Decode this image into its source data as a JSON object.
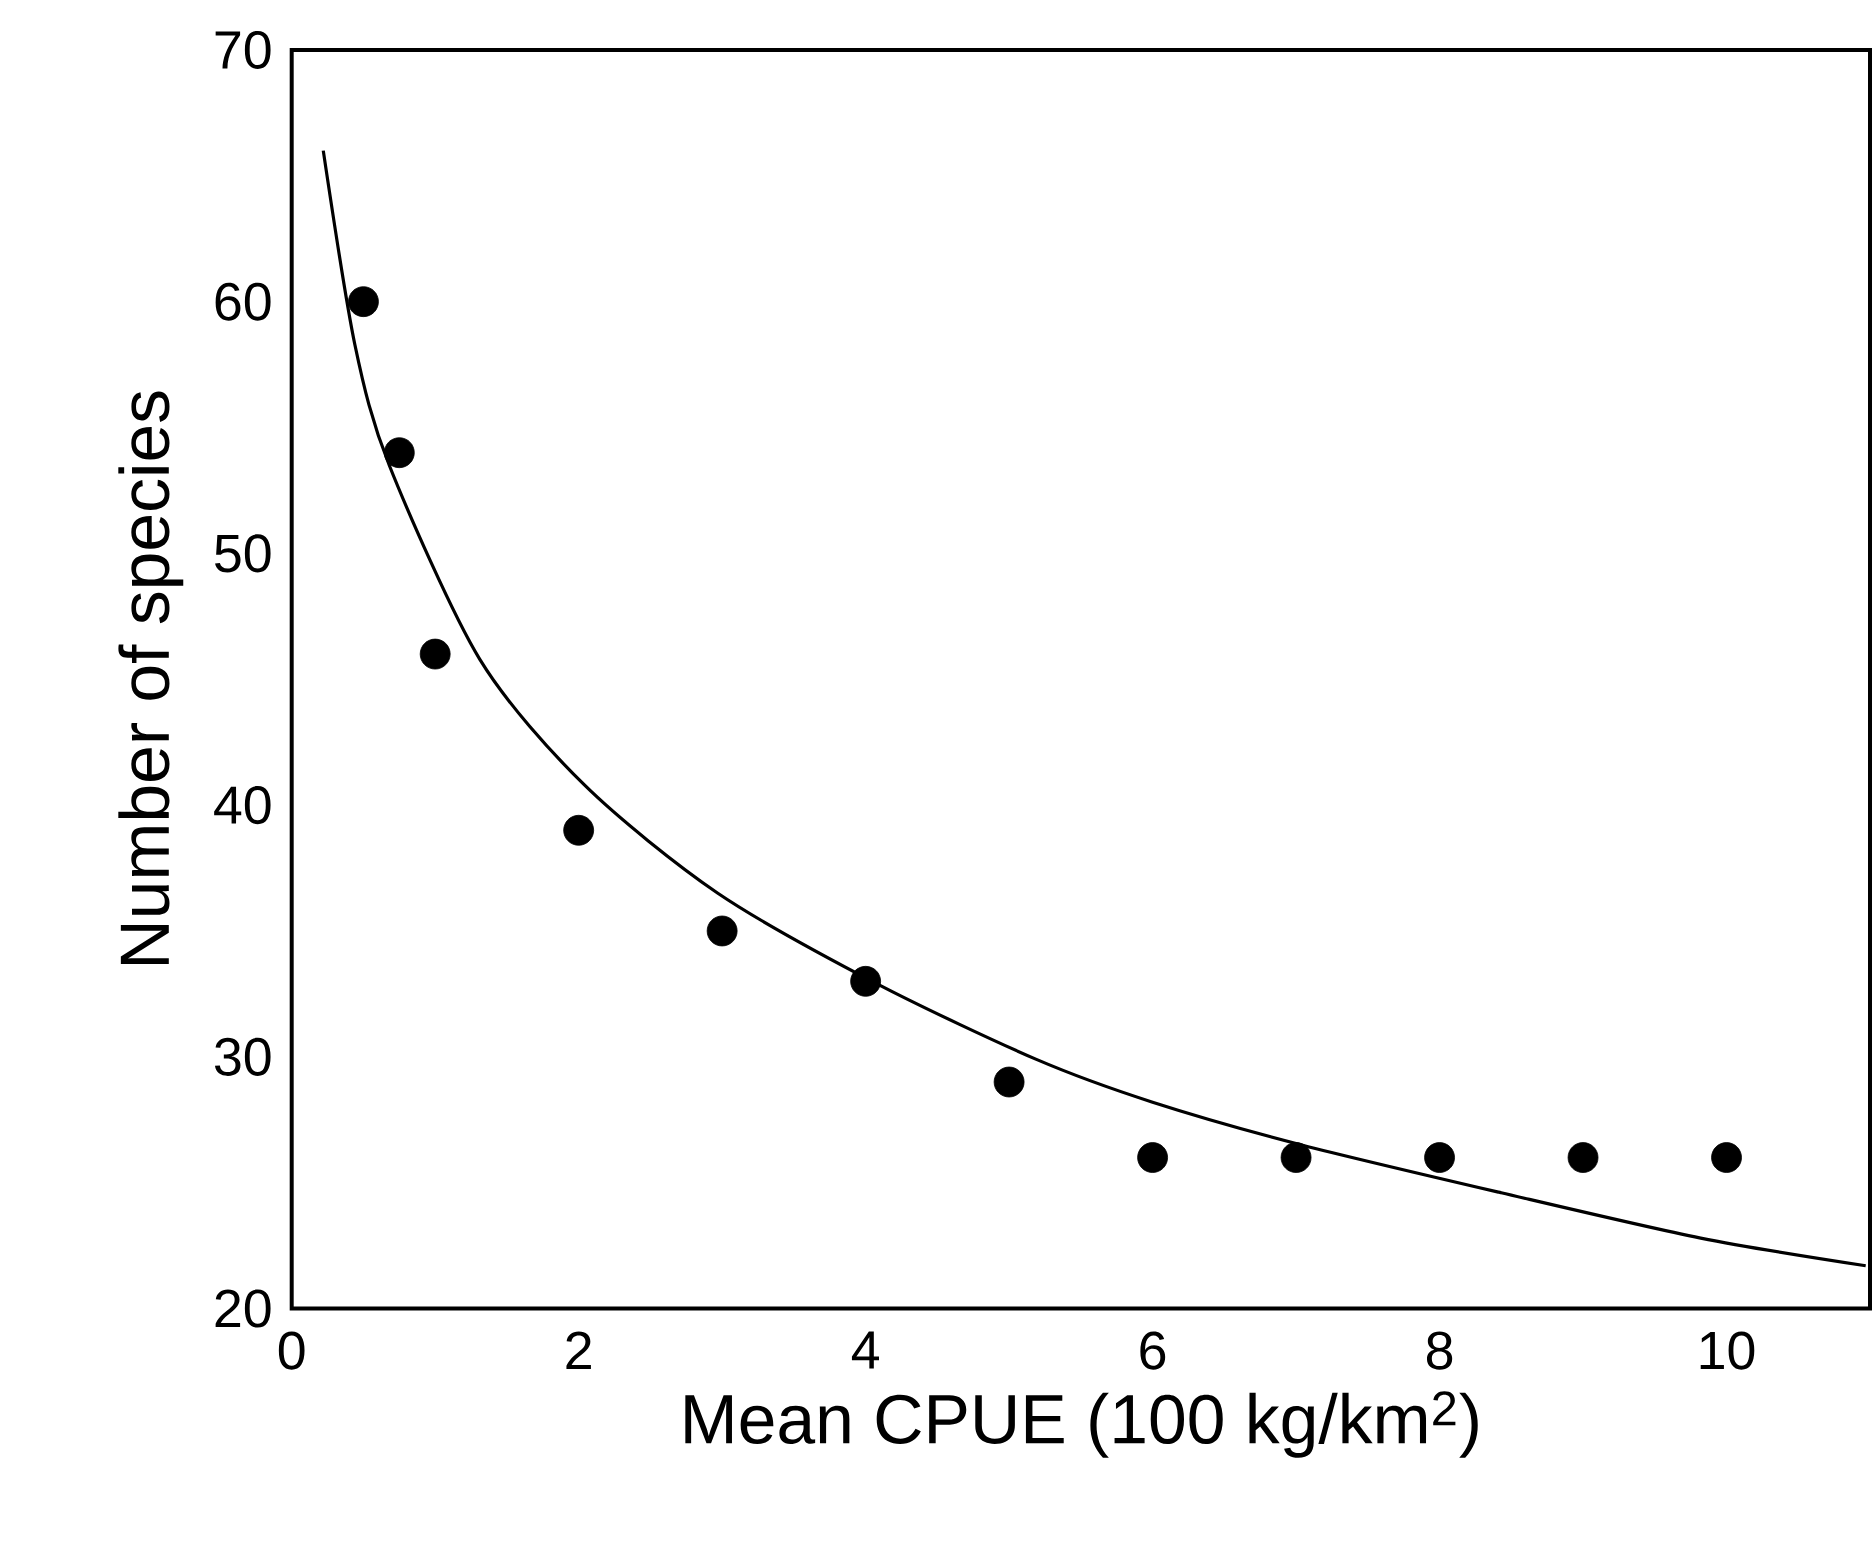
{
  "chart_data": {
    "type": "scatter",
    "xlabel": "Mean CPUE (100 kg/km$^{2}$)",
    "ylabel": "Number of species",
    "xlim": [
      0,
      11
    ],
    "ylim": [
      20,
      70
    ],
    "xticks": [
      0,
      2,
      4,
      6,
      8,
      10
    ],
    "yticks": [
      20,
      30,
      40,
      50,
      60,
      70
    ],
    "grid": false,
    "series": [
      {
        "marker": "circle",
        "color": "#000000",
        "x": [
          0.5,
          0.75,
          1,
          2,
          3,
          4,
          5,
          6,
          7,
          8,
          9,
          10
        ],
        "values": [
          60,
          54,
          46,
          39,
          35,
          33,
          29,
          26,
          26,
          26,
          26,
          26
        ]
      },
      {
        "type": "line",
        "marker": "none",
        "line_style": "solid",
        "color": "#000000",
        "x": [
          0.22,
          0.44,
          0.68,
          1.31,
          2.04,
          2.97,
          4.08,
          5.19,
          6,
          7.04,
          8.43,
          9.82,
          10.97
        ],
        "values": [
          66,
          58.3,
          53.5,
          45.8,
          40.8,
          36.5,
          32.9,
          29.9,
          28.2,
          26.5,
          24.6,
          22.8,
          21.7
        ]
      }
    ]
  }
}
